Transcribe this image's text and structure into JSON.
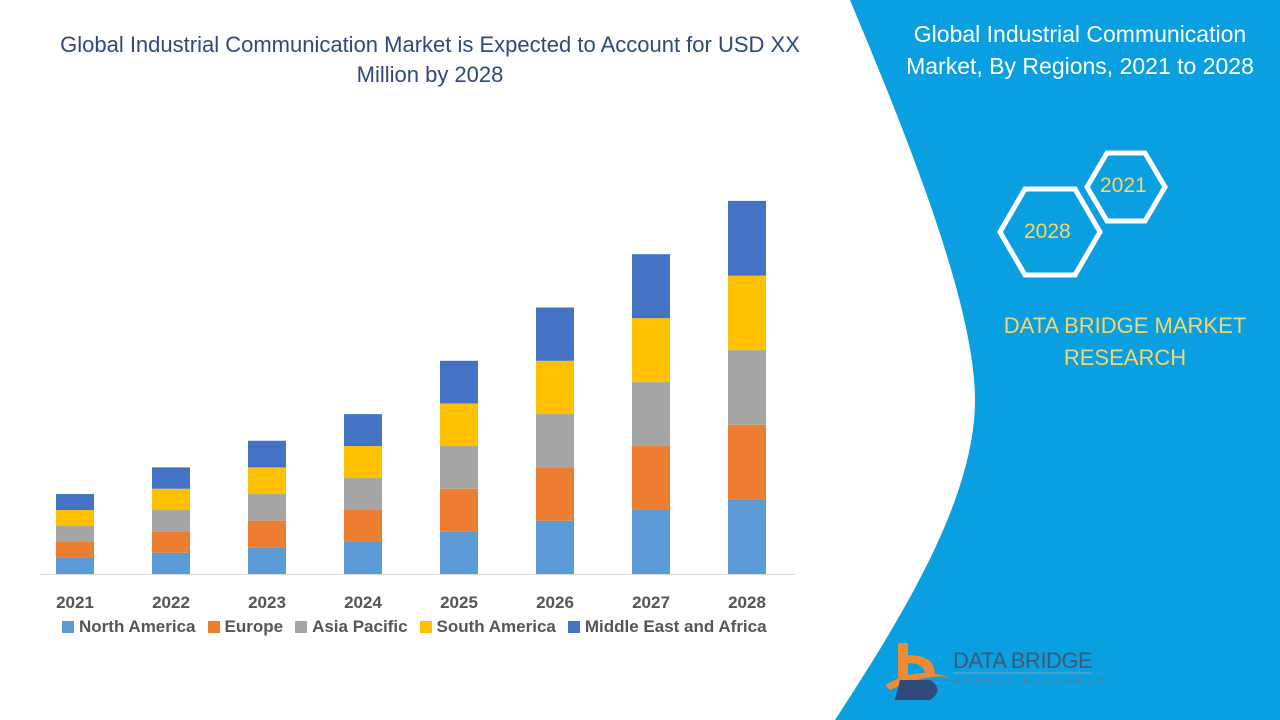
{
  "title": "Global Industrial Communication Market is Expected to Account for USD XX Million by 2028",
  "side_panel": {
    "title": "Global Industrial Communication Market, By Regions, 2021 to 2028",
    "hex_labels": [
      "2021",
      "2028"
    ],
    "brand": "DATA BRIDGE MARKET RESEARCH",
    "logo_text": "DATA BRIDGE",
    "logo_subtext": "MARKET RESEARCH",
    "panel_color": "#0a9fe0"
  },
  "chart_data": {
    "type": "bar",
    "stacked": true,
    "title": "Global Industrial Communication Market is Expected to Account for USD XX Million by 2028",
    "categories": [
      "2021",
      "2022",
      "2023",
      "2024",
      "2025",
      "2026",
      "2027",
      "2028"
    ],
    "series": [
      {
        "name": "North America",
        "color": "#5b9bd5",
        "values": [
          3,
          4,
          5,
          6,
          8,
          10,
          12,
          14
        ]
      },
      {
        "name": "Europe",
        "color": "#ed7d31",
        "values": [
          3,
          4,
          5,
          6,
          8,
          10,
          12,
          14
        ]
      },
      {
        "name": "Asia Pacific",
        "color": "#a5a5a5",
        "values": [
          3,
          4,
          5,
          6,
          8,
          10,
          12,
          14
        ]
      },
      {
        "name": "South America",
        "color": "#ffc000",
        "values": [
          3,
          4,
          5,
          6,
          8,
          10,
          12,
          14
        ]
      },
      {
        "name": "Middle East and Africa",
        "color": "#4472c4",
        "values": [
          3,
          4,
          5,
          6,
          8,
          10,
          12,
          14
        ]
      }
    ],
    "xlabel": "",
    "ylabel": "",
    "grid": false,
    "legend": "bottom"
  }
}
